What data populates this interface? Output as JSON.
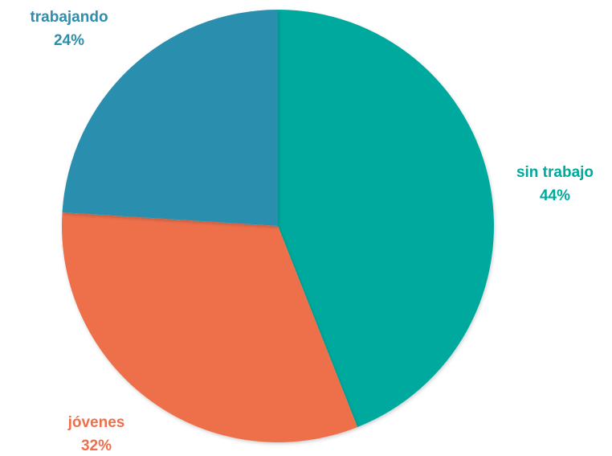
{
  "chart_data": {
    "type": "pie",
    "start_angle_deg": 0,
    "direction": "clockwise",
    "slices": [
      {
        "label": "sin trabajo",
        "value": 44,
        "value_label": "44%",
        "color": "#00A99D"
      },
      {
        "label": "jóvenes",
        "value": 32,
        "value_label": "32%",
        "color": "#EE6F4B"
      },
      {
        "label": "trabajando",
        "value": 24,
        "value_label": "24%",
        "color": "#2C8FAE"
      }
    ]
  }
}
